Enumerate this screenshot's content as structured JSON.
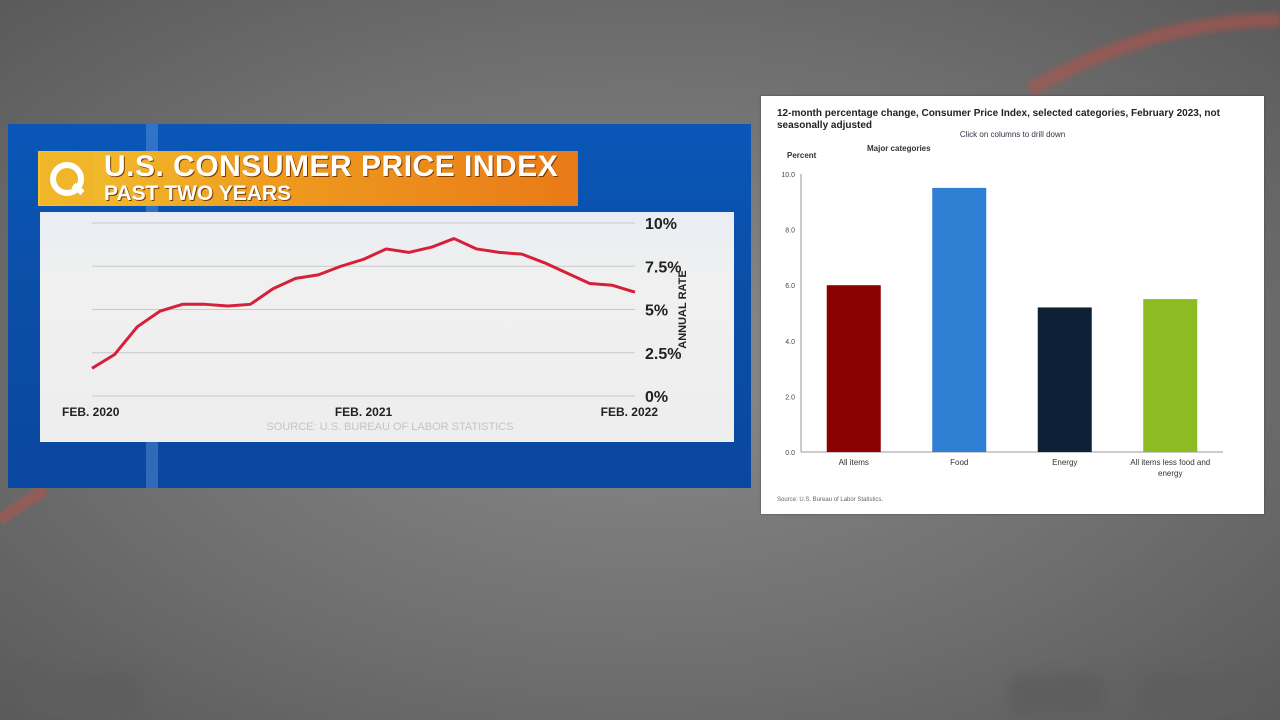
{
  "tv_graphic": {
    "title": "U.S. CONSUMER PRICE INDEX",
    "subtitle": "PAST TWO YEARS",
    "source": "SOURCE: U.S. BUREAU OF LABOR STATISTICS",
    "colors": {
      "line": "#d6203a",
      "title_bg_start": "#f2c230",
      "title_bg_end": "#ea7a17",
      "panel": "#0a57b8"
    }
  },
  "bls_chart": {
    "title": "12-month percentage change, Consumer Price Index, selected categories, February 2023, not seasonally adjusted",
    "drill_hint": "Click on columns to drill down",
    "series_label": "Major categories",
    "source": "Source: U.S. Bureau of Labor Statistics."
  },
  "chart_data": [
    {
      "type": "line",
      "title": "U.S. CONSUMER PRICE INDEX",
      "subtitle": "PAST TWO YEARS",
      "ylabel": "ANNUAL RATE",
      "yticks": [
        "10%",
        "7.5%",
        "5%",
        "2.5%",
        "0%"
      ],
      "ytick_values": [
        10,
        7.5,
        5,
        2.5,
        0
      ],
      "xticks": [
        "FEB. 2020",
        "FEB. 2021",
        "FEB. 2022"
      ],
      "xtick_values": [
        0,
        12,
        24
      ],
      "ylim": [
        0,
        10
      ],
      "xlim": [
        0,
        24
      ],
      "grid": true,
      "series": [
        {
          "x": [
            0,
            1,
            2,
            3,
            4,
            5,
            6,
            7,
            8,
            9,
            10,
            11,
            12,
            13,
            14,
            15,
            16,
            17,
            18,
            19,
            20,
            21,
            22,
            23,
            24
          ],
          "values": [
            1.6,
            2.4,
            4.0,
            4.9,
            5.3,
            5.3,
            5.2,
            5.3,
            6.2,
            6.8,
            7.0,
            7.5,
            7.9,
            8.5,
            8.3,
            8.6,
            9.1,
            8.5,
            8.3,
            8.2,
            7.7,
            7.1,
            6.5,
            6.4,
            6.0
          ]
        }
      ]
    },
    {
      "type": "bar",
      "title": "12-month percentage change, Consumer Price Index, selected categories, February 2023, not seasonally adjusted",
      "ylabel": "Percent",
      "categories": [
        "All items",
        "Food",
        "Energy",
        "All items less food and energy"
      ],
      "values": [
        6.0,
        9.5,
        5.2,
        5.5
      ],
      "colors": [
        "#8b0000",
        "#2f7fd4",
        "#0e2036",
        "#8cbc22"
      ],
      "ylim": [
        0,
        10
      ],
      "yticks": [
        "0.0",
        "2.0",
        "4.0",
        "6.0",
        "8.0",
        "10.0"
      ],
      "ytick_values": [
        0,
        2,
        4,
        6,
        8,
        10
      ],
      "grid": false,
      "legend": "none"
    }
  ]
}
